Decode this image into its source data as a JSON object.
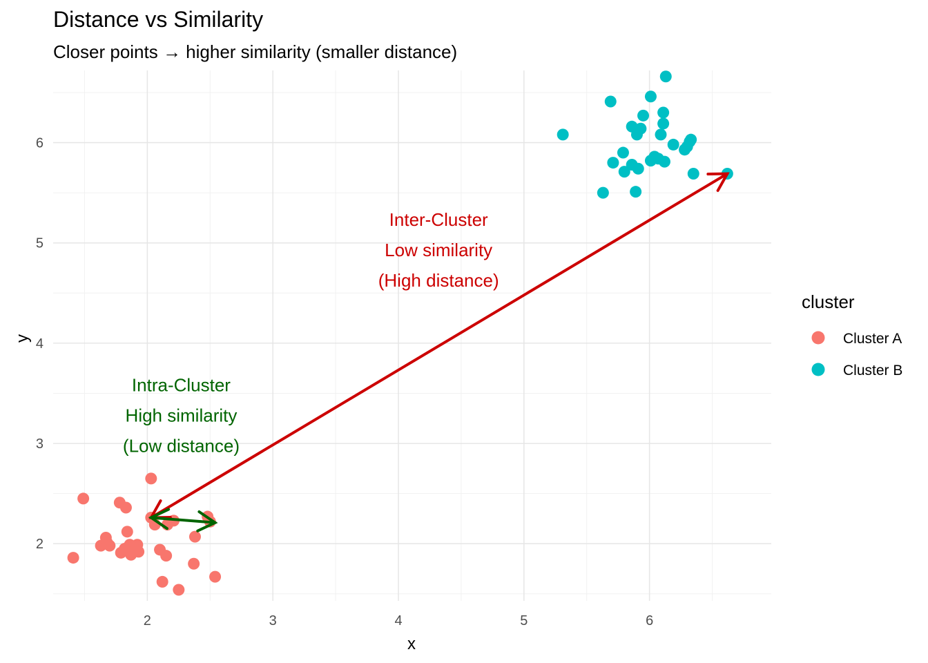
{
  "chart_data": {
    "type": "scatter",
    "title": "Distance vs Similarity",
    "subtitle": "Closer points → higher similarity (smaller distance)",
    "xlabel": "x",
    "ylabel": "y",
    "xlim": [
      1.25,
      6.97
    ],
    "ylim": [
      1.43,
      6.72
    ],
    "x_ticks": [
      2,
      3,
      4,
      5,
      6
    ],
    "y_ticks": [
      2,
      3,
      4,
      5,
      6
    ],
    "grid": true,
    "legend": {
      "title": "cluster",
      "position": "right",
      "entries": [
        {
          "label": "Cluster A",
          "color": "#F8766D"
        },
        {
          "label": "Cluster B",
          "color": "#00BFC4"
        }
      ]
    },
    "series": [
      {
        "name": "Cluster A",
        "color": "#F8766D",
        "points": [
          [
            1.41,
            1.86
          ],
          [
            1.49,
            2.45
          ],
          [
            1.63,
            1.98
          ],
          [
            1.67,
            2.06
          ],
          [
            1.68,
            2.01
          ],
          [
            1.7,
            1.98
          ],
          [
            1.78,
            2.41
          ],
          [
            1.79,
            1.91
          ],
          [
            1.82,
            1.95
          ],
          [
            1.83,
            2.36
          ],
          [
            1.84,
            2.12
          ],
          [
            1.86,
            1.99
          ],
          [
            1.87,
            1.89
          ],
          [
            1.89,
            1.92
          ],
          [
            1.92,
            1.99
          ],
          [
            1.93,
            1.92
          ],
          [
            2.03,
            2.65
          ],
          [
            2.03,
            2.26
          ],
          [
            2.06,
            2.19
          ],
          [
            2.1,
            1.94
          ],
          [
            2.12,
            1.62
          ],
          [
            2.15,
            1.88
          ],
          [
            2.16,
            2.19
          ],
          [
            2.21,
            2.23
          ],
          [
            2.25,
            1.54
          ],
          [
            2.37,
            1.8
          ],
          [
            2.38,
            2.07
          ],
          [
            2.48,
            2.27
          ],
          [
            2.5,
            2.22
          ],
          [
            2.54,
            1.67
          ]
        ]
      },
      {
        "name": "Cluster B",
        "color": "#00BFC4",
        "points": [
          [
            5.31,
            6.08
          ],
          [
            5.63,
            5.5
          ],
          [
            5.69,
            6.41
          ],
          [
            5.71,
            5.8
          ],
          [
            5.79,
            5.9
          ],
          [
            5.8,
            5.71
          ],
          [
            5.86,
            6.16
          ],
          [
            5.86,
            5.78
          ],
          [
            5.89,
            5.51
          ],
          [
            5.9,
            6.08
          ],
          [
            5.91,
            5.74
          ],
          [
            5.93,
            6.14
          ],
          [
            5.95,
            6.27
          ],
          [
            6.01,
            6.46
          ],
          [
            6.01,
            5.82
          ],
          [
            6.04,
            5.86
          ],
          [
            6.07,
            5.84
          ],
          [
            6.09,
            6.08
          ],
          [
            6.11,
            6.3
          ],
          [
            6.11,
            6.19
          ],
          [
            6.12,
            5.81
          ],
          [
            6.13,
            6.66
          ],
          [
            6.19,
            5.98
          ],
          [
            6.28,
            5.93
          ],
          [
            6.3,
            5.96
          ],
          [
            6.32,
            6.01
          ],
          [
            6.33,
            6.03
          ],
          [
            6.35,
            5.69
          ],
          [
            6.62,
            5.69
          ]
        ]
      }
    ],
    "annotations": [
      {
        "text_lines": [
          "Inter-Cluster",
          "Low similarity",
          "(High distance)"
        ],
        "color": "#CC0000",
        "anchor_xy": [
          4.32,
          5.17
        ]
      },
      {
        "text_lines": [
          "Intra-Cluster",
          "High similarity",
          "(Low distance)"
        ],
        "color": "#006400",
        "anchor_xy": [
          2.27,
          3.52
        ]
      }
    ],
    "arrows": [
      {
        "from": [
          2.03,
          2.26
        ],
        "to": [
          6.62,
          5.69
        ],
        "color": "#CC0000",
        "ends": "both"
      },
      {
        "from": [
          2.03,
          2.26
        ],
        "to": [
          2.54,
          2.21
        ],
        "color": "#006400",
        "ends": "both"
      }
    ]
  }
}
